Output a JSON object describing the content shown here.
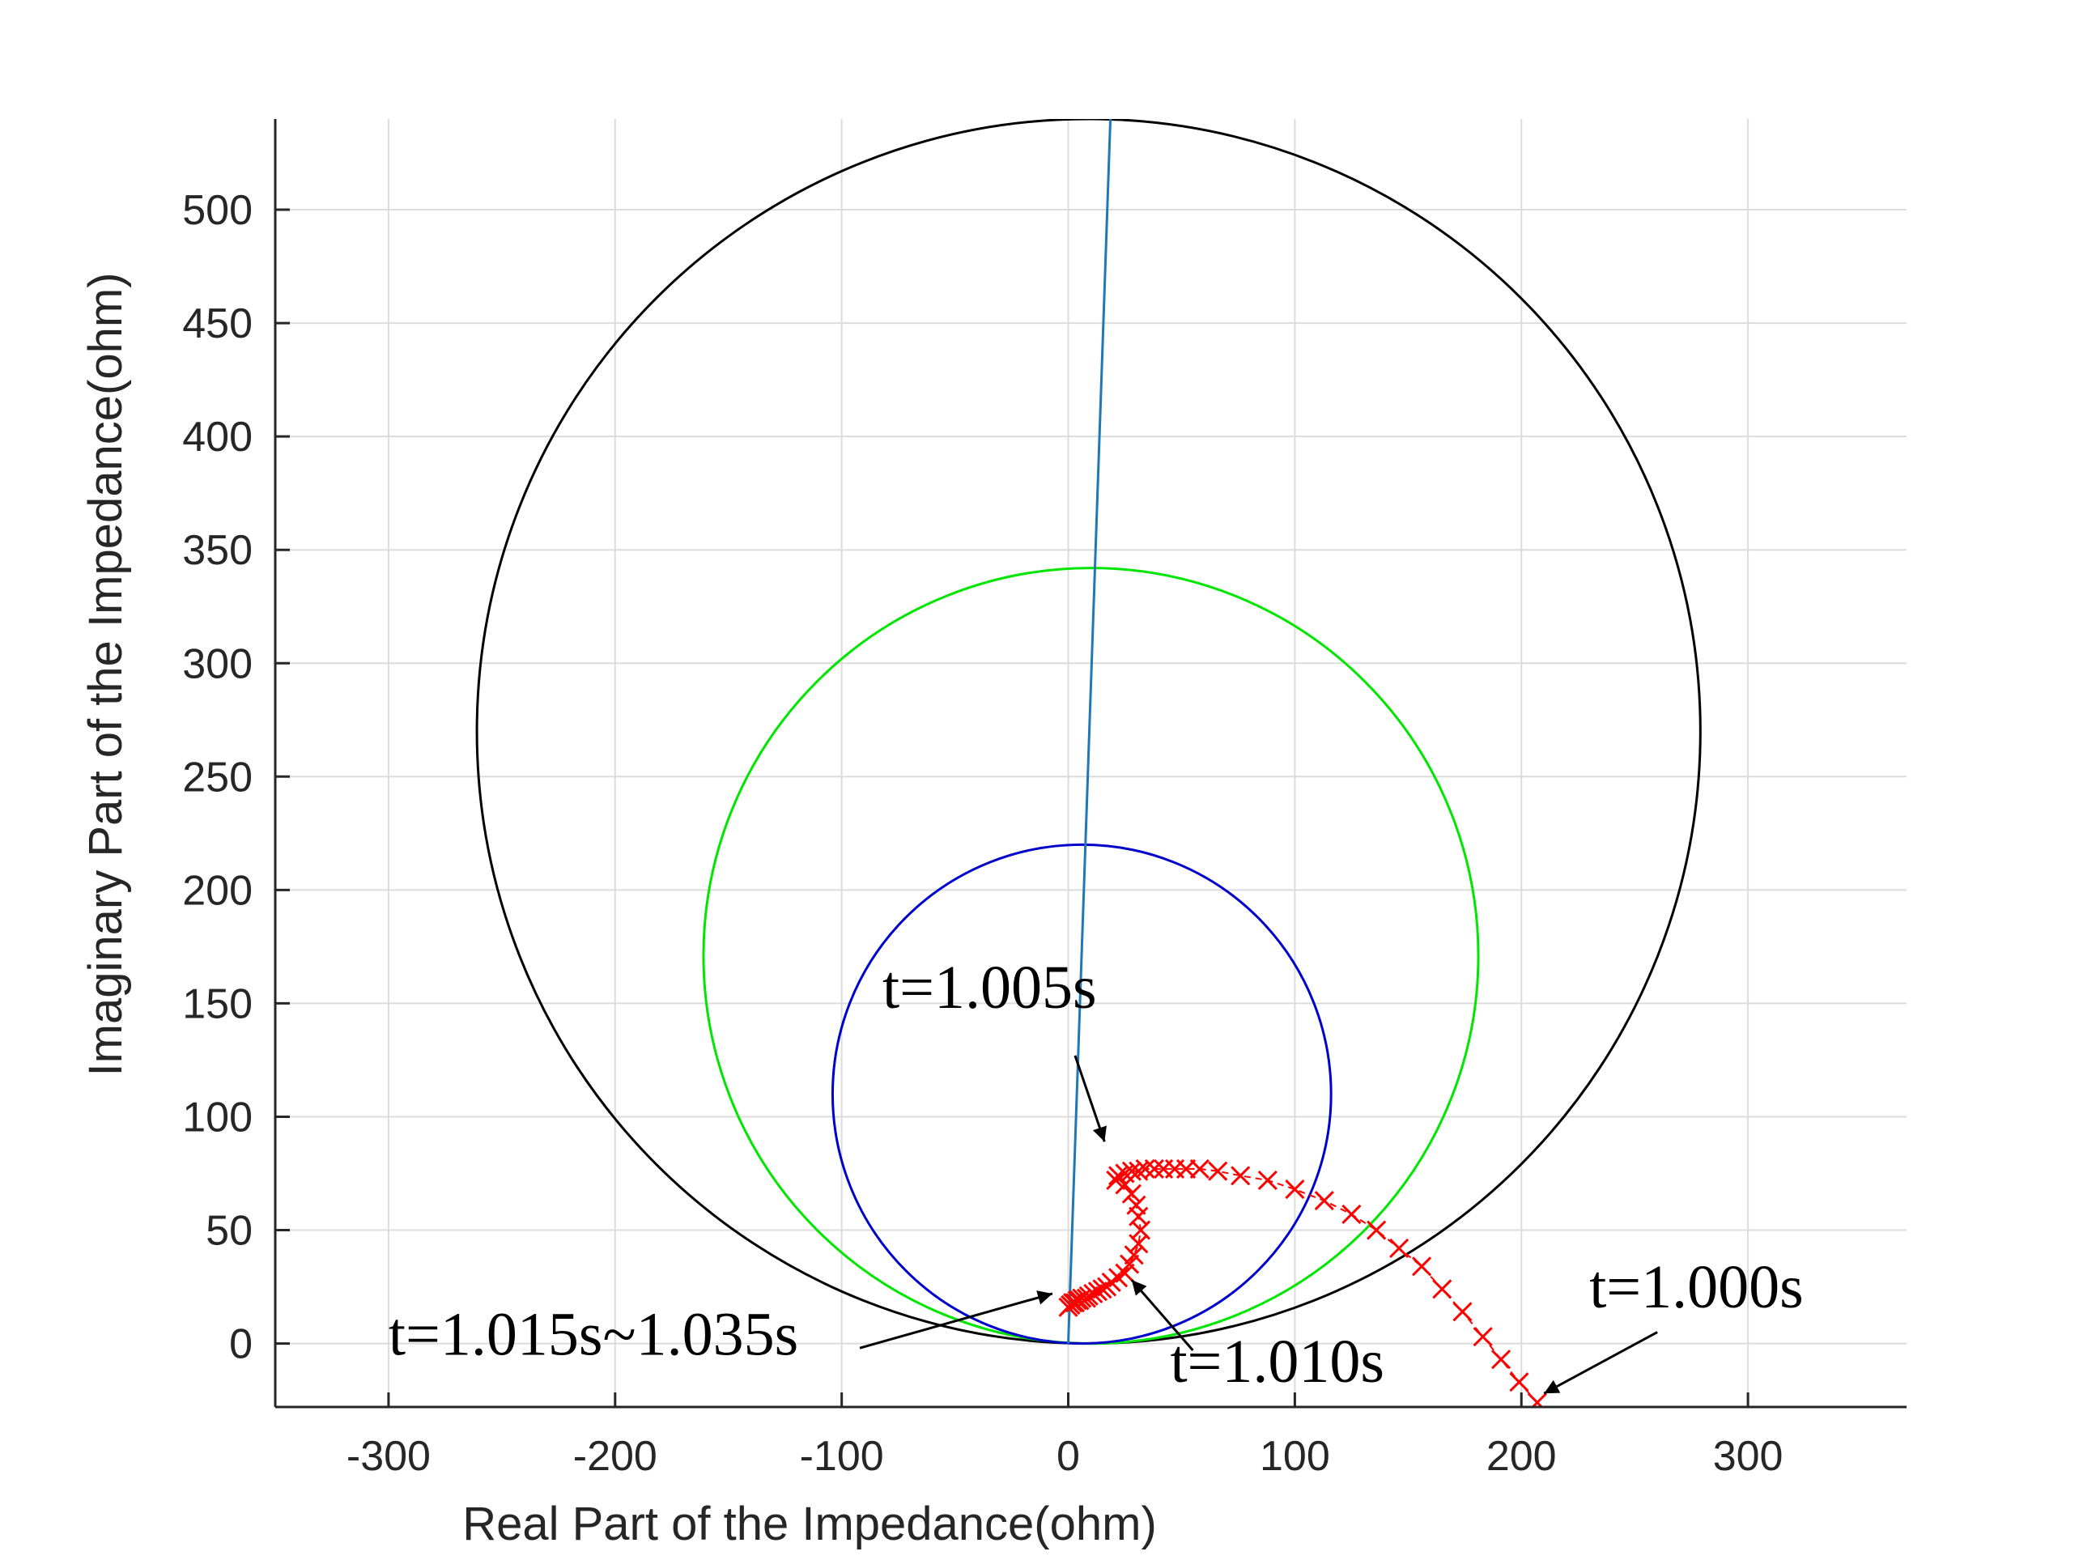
{
  "chart_data": {
    "type": "scatter",
    "title": "",
    "xlabel": "Real Part of the Impedance(ohm)",
    "ylabel": "Imaginary Part of the Impedance(ohm)",
    "xlim": [
      -350,
      370
    ],
    "ylim": [
      -28,
      540
    ],
    "x_ticks": [
      -300,
      -200,
      -100,
      0,
      100,
      200,
      300
    ],
    "y_ticks": [
      0,
      50,
      100,
      150,
      200,
      250,
      300,
      350,
      400,
      450,
      500
    ],
    "grid": true,
    "circles": [
      {
        "name": "",
        "color": "#000000",
        "center": [
          9,
          270
        ],
        "radius": 270
      },
      {
        "name": "",
        "color": "#00e600",
        "center": [
          10,
          171
        ],
        "radius": 171
      },
      {
        "name": "",
        "color": "#0000cc",
        "center": [
          6,
          110
        ],
        "radius": 110
      }
    ],
    "line": {
      "color": "#1f77b4",
      "x": [
        0,
        18.6
      ],
      "y": [
        0,
        540
      ]
    },
    "series": [
      {
        "color": "#ff0000",
        "marker": "x",
        "x": [
          207,
          199,
          191,
          183,
          174,
          165,
          156,
          146,
          136,
          125,
          113,
          100,
          88,
          76,
          66,
          58,
          52,
          47,
          42,
          38,
          34,
          31,
          28,
          25,
          22,
          21,
          25,
          28,
          30,
          31,
          32,
          31,
          29,
          27,
          25,
          22,
          19,
          17,
          15,
          13,
          11,
          9,
          8,
          6,
          5,
          4,
          3,
          2,
          1,
          1,
          0
        ],
        "y": [
          -26,
          -17,
          -7,
          3,
          14,
          24,
          34,
          42,
          50,
          57,
          63,
          68,
          72,
          74,
          76,
          77,
          77,
          77,
          77,
          77,
          77,
          76,
          76,
          75,
          74,
          72,
          70,
          66,
          61,
          56,
          50,
          44,
          39,
          35,
          31,
          29,
          27,
          25,
          24,
          23,
          22,
          21,
          20,
          20,
          19,
          19,
          18,
          18,
          17,
          17,
          16
        ]
      }
    ],
    "annotations": [
      {
        "text": "t=1.005s",
        "text_at": [
          -82,
          148
        ],
        "arrow_from": [
          3,
          127
        ],
        "arrow_to": [
          16,
          89
        ]
      },
      {
        "text": "t=1.000s",
        "text_at": [
          230,
          16
        ],
        "arrow_from": [
          260,
          5
        ],
        "arrow_to": [
          210,
          -22
        ]
      },
      {
        "text": "t=1.010s",
        "text_at": [
          45,
          -17
        ],
        "arrow_from": [
          55,
          -3
        ],
        "arrow_to": [
          28,
          28
        ]
      },
      {
        "text": "t=1.015s~1.035s",
        "text_at": [
          -300,
          -5
        ],
        "arrow_from": [
          -92,
          -2
        ],
        "arrow_to": [
          -7,
          22
        ]
      }
    ]
  }
}
